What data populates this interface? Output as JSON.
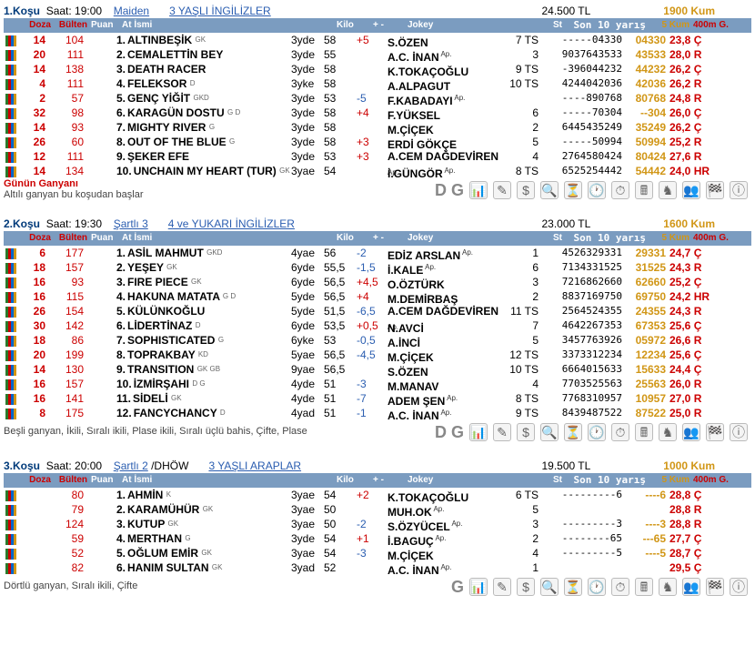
{
  "hdr": {
    "doz": "Doza",
    "bul": "Bülten",
    "pu": "Puan",
    "at": "At İsmi",
    "kilo": "Kilo",
    "pm": "+ -",
    "jok": "Jokey",
    "st": "St",
    "s10": "Son 10 yarış",
    "k5": "5 Kum",
    "h4": "400m G.",
    "sc": "S"
  },
  "races": [
    {
      "no": "1.Koşu",
      "time": "Saat: 19:00",
      "cat": "Maiden",
      "cat2": "3 YAŞLI İNGİLİZLER",
      "prize": "24.500 TL",
      "dist": "1900 Kum",
      "gunun": "Günün Ganyanı",
      "sub": "Altılı ganyan bu koşudan başlar",
      "dg": "D G",
      "rows": [
        {
          "doz": "14",
          "bul": "104",
          "n": "1",
          "nm": "ALTINBEŞİK",
          "sup": "GK",
          "age": "3yde",
          "kilo": "58",
          "pm": "+5",
          "pmc": "pos",
          "jok": "S.ÖZEN",
          "jsup": "",
          "st": "7 TS",
          "s10": "-----04330",
          "k5": "04330",
          "h4": "23,8 Ç"
        },
        {
          "doz": "20",
          "bul": "111",
          "n": "2",
          "nm": "CEMALETTİN BEY",
          "sup": "",
          "age": "3yde",
          "kilo": "55",
          "pm": "",
          "pmc": "",
          "jok": "A.C. İNAN",
          "jsup": "Ap.",
          "st": "3",
          "s10": "9037643533",
          "k5": "43533",
          "h4": "28,0 R"
        },
        {
          "doz": "14",
          "bul": "138",
          "n": "3",
          "nm": "DEATH RACER",
          "sup": "",
          "age": "3yde",
          "kilo": "58",
          "pm": "",
          "pmc": "",
          "jok": "K.TOKAÇOĞLU",
          "jsup": "",
          "st": "9 TS",
          "s10": "-396044232",
          "k5": "44232",
          "h4": "26,2 Ç"
        },
        {
          "doz": "4",
          "bul": "111",
          "n": "4",
          "nm": "FELEKSOR",
          "sup": "D",
          "age": "3yke",
          "kilo": "58",
          "pm": "",
          "pmc": "",
          "jok": "A.ALPAGUT",
          "jsup": "",
          "st": "10 TS",
          "s10": "4244042036",
          "k5": "42036",
          "h4": "26,2 R"
        },
        {
          "doz": "2",
          "bul": "57",
          "n": "5",
          "nm": "GENÇ YİĞİT",
          "sup": "GKD",
          "age": "3yde",
          "kilo": "53",
          "pm": "-5",
          "pmc": "neg",
          "jok": "F.KABADAYI",
          "jsup": "Ap.",
          "st": "",
          "s10": "----890768",
          "k5": "80768",
          "h4": "24,8 R"
        },
        {
          "doz": "32",
          "bul": "98",
          "n": "6",
          "nm": "KARAGÜN DOSTU",
          "sup": "G D",
          "age": "3yde",
          "kilo": "58",
          "pm": "+4",
          "pmc": "pos",
          "jok": "F.YÜKSEL",
          "jsup": "",
          "st": "6",
          "s10": "-----70304",
          "k5": "--304",
          "h4": "26,0 Ç"
        },
        {
          "doz": "14",
          "bul": "93",
          "n": "7",
          "nm": "MIGHTY RIVER",
          "sup": "G",
          "age": "3yde",
          "kilo": "58",
          "pm": "",
          "pmc": "",
          "jok": "M.ÇİÇEK",
          "jsup": "",
          "st": "2",
          "s10": "6445435249",
          "k5": "35249",
          "h4": "26,2 Ç"
        },
        {
          "doz": "26",
          "bul": "60",
          "n": "8",
          "nm": "OUT OF THE BLUE",
          "sup": "G",
          "age": "3yde",
          "kilo": "58",
          "pm": "+3",
          "pmc": "pos",
          "jok": "ERDİ GÖKÇE",
          "jsup": "",
          "st": "5",
          "s10": "-----50994",
          "k5": "50994",
          "h4": "25,2 R"
        },
        {
          "doz": "12",
          "bul": "111",
          "n": "9",
          "nm": "ŞEKER EFE",
          "sup": "",
          "age": "3yde",
          "kilo": "53",
          "pm": "+3",
          "pmc": "pos",
          "jok": "A.CEM DAĞDEVİREN",
          "jsup": "Ap.",
          "st": "4",
          "s10": "2764580424",
          "k5": "80424",
          "h4": "27,6 R"
        },
        {
          "doz": "14",
          "bul": "134",
          "n": "10",
          "nm": "UNCHAIN MY HEART (TUR)",
          "sup": "GK",
          "age": "3yae",
          "kilo": "54",
          "pm": "",
          "pmc": "",
          "jok": "İ.GÜNGÖR",
          "jsup": "Ap.",
          "st": "8 TS",
          "s10": "6525254442",
          "k5": "54442",
          "h4": "24,0 HR"
        }
      ]
    },
    {
      "no": "2.Koşu",
      "time": "Saat: 19:30",
      "cat": "Şartlı  3",
      "cat2": "4 ve YUKARI İNGİLİZLER",
      "prize": "23.000 TL",
      "dist": "1600 Kum",
      "gunun": "",
      "sub": "Beşli ganyan, İkili, Sıralı ikili, Plase ikili, Sıralı üçlü bahis, Çifte, Plase",
      "dg": "D G",
      "rows": [
        {
          "doz": "6",
          "bul": "177",
          "n": "1",
          "nm": "ASİL MAHMUT",
          "sup": "GKD",
          "age": "4yae",
          "kilo": "56",
          "pm": "-2",
          "pmc": "neg",
          "jok": "EDİZ ARSLAN",
          "jsup": "Ap.",
          "st": "1",
          "s10": "4526329331",
          "k5": "29331",
          "h4": "24,7 Ç"
        },
        {
          "doz": "18",
          "bul": "157",
          "n": "2",
          "nm": "YEŞEY",
          "sup": "GK",
          "age": "6yde",
          "kilo": "55,5",
          "pm": "-1,5",
          "pmc": "neg",
          "jok": "İ.KALE",
          "jsup": "Ap.",
          "st": "6",
          "s10": "7134331525",
          "k5": "31525",
          "h4": "24,3 R"
        },
        {
          "doz": "16",
          "bul": "93",
          "n": "3",
          "nm": "FIRE PIECE",
          "sup": "GK",
          "age": "6yde",
          "kilo": "56,5",
          "pm": "+4,5",
          "pmc": "pos",
          "jok": "O.ÖZTÜRK",
          "jsup": "",
          "st": "3",
          "s10": "7216862660",
          "k5": "62660",
          "h4": "25,2 Ç"
        },
        {
          "doz": "16",
          "bul": "115",
          "n": "4",
          "nm": "HAKUNA MATATA",
          "sup": "G D",
          "age": "5yde",
          "kilo": "56,5",
          "pm": "+4",
          "pmc": "pos",
          "jok": "M.DEMİRBAŞ",
          "jsup": "",
          "st": "2",
          "s10": "8837169750",
          "k5": "69750",
          "h4": "24,2 HR"
        },
        {
          "doz": "26",
          "bul": "154",
          "n": "5",
          "nm": "KÜLÜNKOĞLU",
          "sup": "",
          "age": "5yde",
          "kilo": "51,5",
          "pm": "-6,5",
          "pmc": "neg",
          "jok": "A.CEM DAĞDEVİREN",
          "jsup": "Ap.",
          "st": "11 TS",
          "s10": "2564524355",
          "k5": "24355",
          "h4": "24,3 R"
        },
        {
          "doz": "30",
          "bul": "142",
          "n": "6",
          "nm": "LİDERTİNAZ",
          "sup": "D",
          "age": "6yde",
          "kilo": "53,5",
          "pm": "+0,5",
          "pmc": "pos",
          "jok": "N.AVCİ",
          "jsup": "",
          "st": "7",
          "s10": "4642267353",
          "k5": "67353",
          "h4": "25,6 Ç"
        },
        {
          "doz": "18",
          "bul": "86",
          "n": "7",
          "nm": "SOPHISTICATED",
          "sup": "G",
          "age": "6yke",
          "kilo": "53",
          "pm": "-0,5",
          "pmc": "neg",
          "jok": "A.İNCİ",
          "jsup": "",
          "st": "5",
          "s10": "3457763926",
          "k5": "05972",
          "h4": "26,6 R"
        },
        {
          "doz": "20",
          "bul": "199",
          "n": "8",
          "nm": "TOPRAKBAY",
          "sup": "KD",
          "age": "5yae",
          "kilo": "56,5",
          "pm": "-4,5",
          "pmc": "neg",
          "jok": "M.ÇİÇEK",
          "jsup": "",
          "st": "12 TS",
          "s10": "3373312234",
          "k5": "12234",
          "h4": "25,6 Ç"
        },
        {
          "doz": "14",
          "bul": "130",
          "n": "9",
          "nm": "TRANSITION",
          "sup": "GK  GB",
          "age": "9yae",
          "kilo": "56,5",
          "pm": "",
          "pmc": "",
          "jok": "S.ÖZEN",
          "jsup": "",
          "st": "10 TS",
          "s10": "6664015633",
          "k5": "15633",
          "h4": "24,4 Ç"
        },
        {
          "doz": "16",
          "bul": "157",
          "n": "10",
          "nm": "İZMİRŞAHI",
          "sup": "D G",
          "age": "4yde",
          "kilo": "51",
          "pm": "-3",
          "pmc": "neg",
          "jok": "M.MANAV",
          "jsup": "",
          "st": "4",
          "s10": "7703525563",
          "k5": "25563",
          "h4": "26,0 R"
        },
        {
          "doz": "16",
          "bul": "141",
          "n": "11",
          "nm": "SİDELİ",
          "sup": "GK",
          "age": "4yde",
          "kilo": "51",
          "pm": "-7",
          "pmc": "neg",
          "jok": "ADEM ŞEN",
          "jsup": "Ap.",
          "st": "8 TS",
          "s10": "7768310957",
          "k5": "10957",
          "h4": "27,0 R"
        },
        {
          "doz": "8",
          "bul": "175",
          "n": "12",
          "nm": "FANCYCHANCY",
          "sup": "D",
          "age": "4yad",
          "kilo": "51",
          "pm": "-1",
          "pmc": "neg",
          "jok": "A.C. İNAN",
          "jsup": "Ap.",
          "st": "9 TS",
          "s10": "8439487522",
          "k5": "87522",
          "h4": "25,0 R"
        }
      ]
    },
    {
      "no": "3.Koşu",
      "time": "Saat: 20:00",
      "cat": "Şartlı  2",
      "catextra": "/DHÖW",
      "cat2": "3 YAŞLI ARAPLAR",
      "prize": "19.500 TL",
      "dist": "1000 Kum",
      "gunun": "",
      "sub": "Dörtlü ganyan, Sıralı ikili, Çifte",
      "dg": "G",
      "rows": [
        {
          "doz": "",
          "bul": "80",
          "n": "1",
          "nm": "AHMİN",
          "sup": "K",
          "age": "3yae",
          "kilo": "54",
          "pm": "+2",
          "pmc": "pos",
          "jok": "K.TOKAÇOĞLU",
          "jsup": "",
          "st": "6 TS",
          "s10": "---------6",
          "k5": "----6",
          "h4": "28,8 Ç"
        },
        {
          "doz": "",
          "bul": "79",
          "n": "2",
          "nm": "KARAMÜHÜR",
          "sup": "GK",
          "age": "3yae",
          "kilo": "50",
          "pm": "",
          "pmc": "",
          "jok": "MUH.OK",
          "jsup": "Ap.",
          "st": "5",
          "s10": "",
          "k5": "",
          "h4": "28,8 R"
        },
        {
          "doz": "",
          "bul": "124",
          "n": "3",
          "nm": "KUTUP",
          "sup": "GK",
          "age": "3yae",
          "kilo": "50",
          "pm": "-2",
          "pmc": "neg",
          "jok": "S.ÖZYÜCEL",
          "jsup": "Ap.",
          "st": "3",
          "s10": "---------3",
          "k5": "----3",
          "h4": "28,8 R"
        },
        {
          "doz": "",
          "bul": "59",
          "n": "4",
          "nm": "MERTHAN",
          "sup": "G",
          "age": "3yde",
          "kilo": "54",
          "pm": "+1",
          "pmc": "pos",
          "jok": "İ.BAGUÇ",
          "jsup": "Ap.",
          "st": "2",
          "s10": "--------65",
          "k5": "---65",
          "h4": "27,7 Ç"
        },
        {
          "doz": "",
          "bul": "52",
          "n": "5",
          "nm": "OĞLUM EMİR",
          "sup": "GK",
          "age": "3yae",
          "kilo": "54",
          "pm": "-3",
          "pmc": "neg",
          "jok": "M.ÇİÇEK",
          "jsup": "",
          "st": "4",
          "s10": "---------5",
          "k5": "----5",
          "h4": "28,7 Ç"
        },
        {
          "doz": "",
          "bul": "82",
          "n": "6",
          "nm": "HANIM SULTAN",
          "sup": "GK",
          "age": "3yad",
          "kilo": "52",
          "pm": "",
          "pmc": "",
          "jok": "A.C. İNAN",
          "jsup": "Ap.",
          "st": "1",
          "s10": "",
          "k5": "",
          "h4": "29,5 Ç"
        }
      ]
    }
  ]
}
